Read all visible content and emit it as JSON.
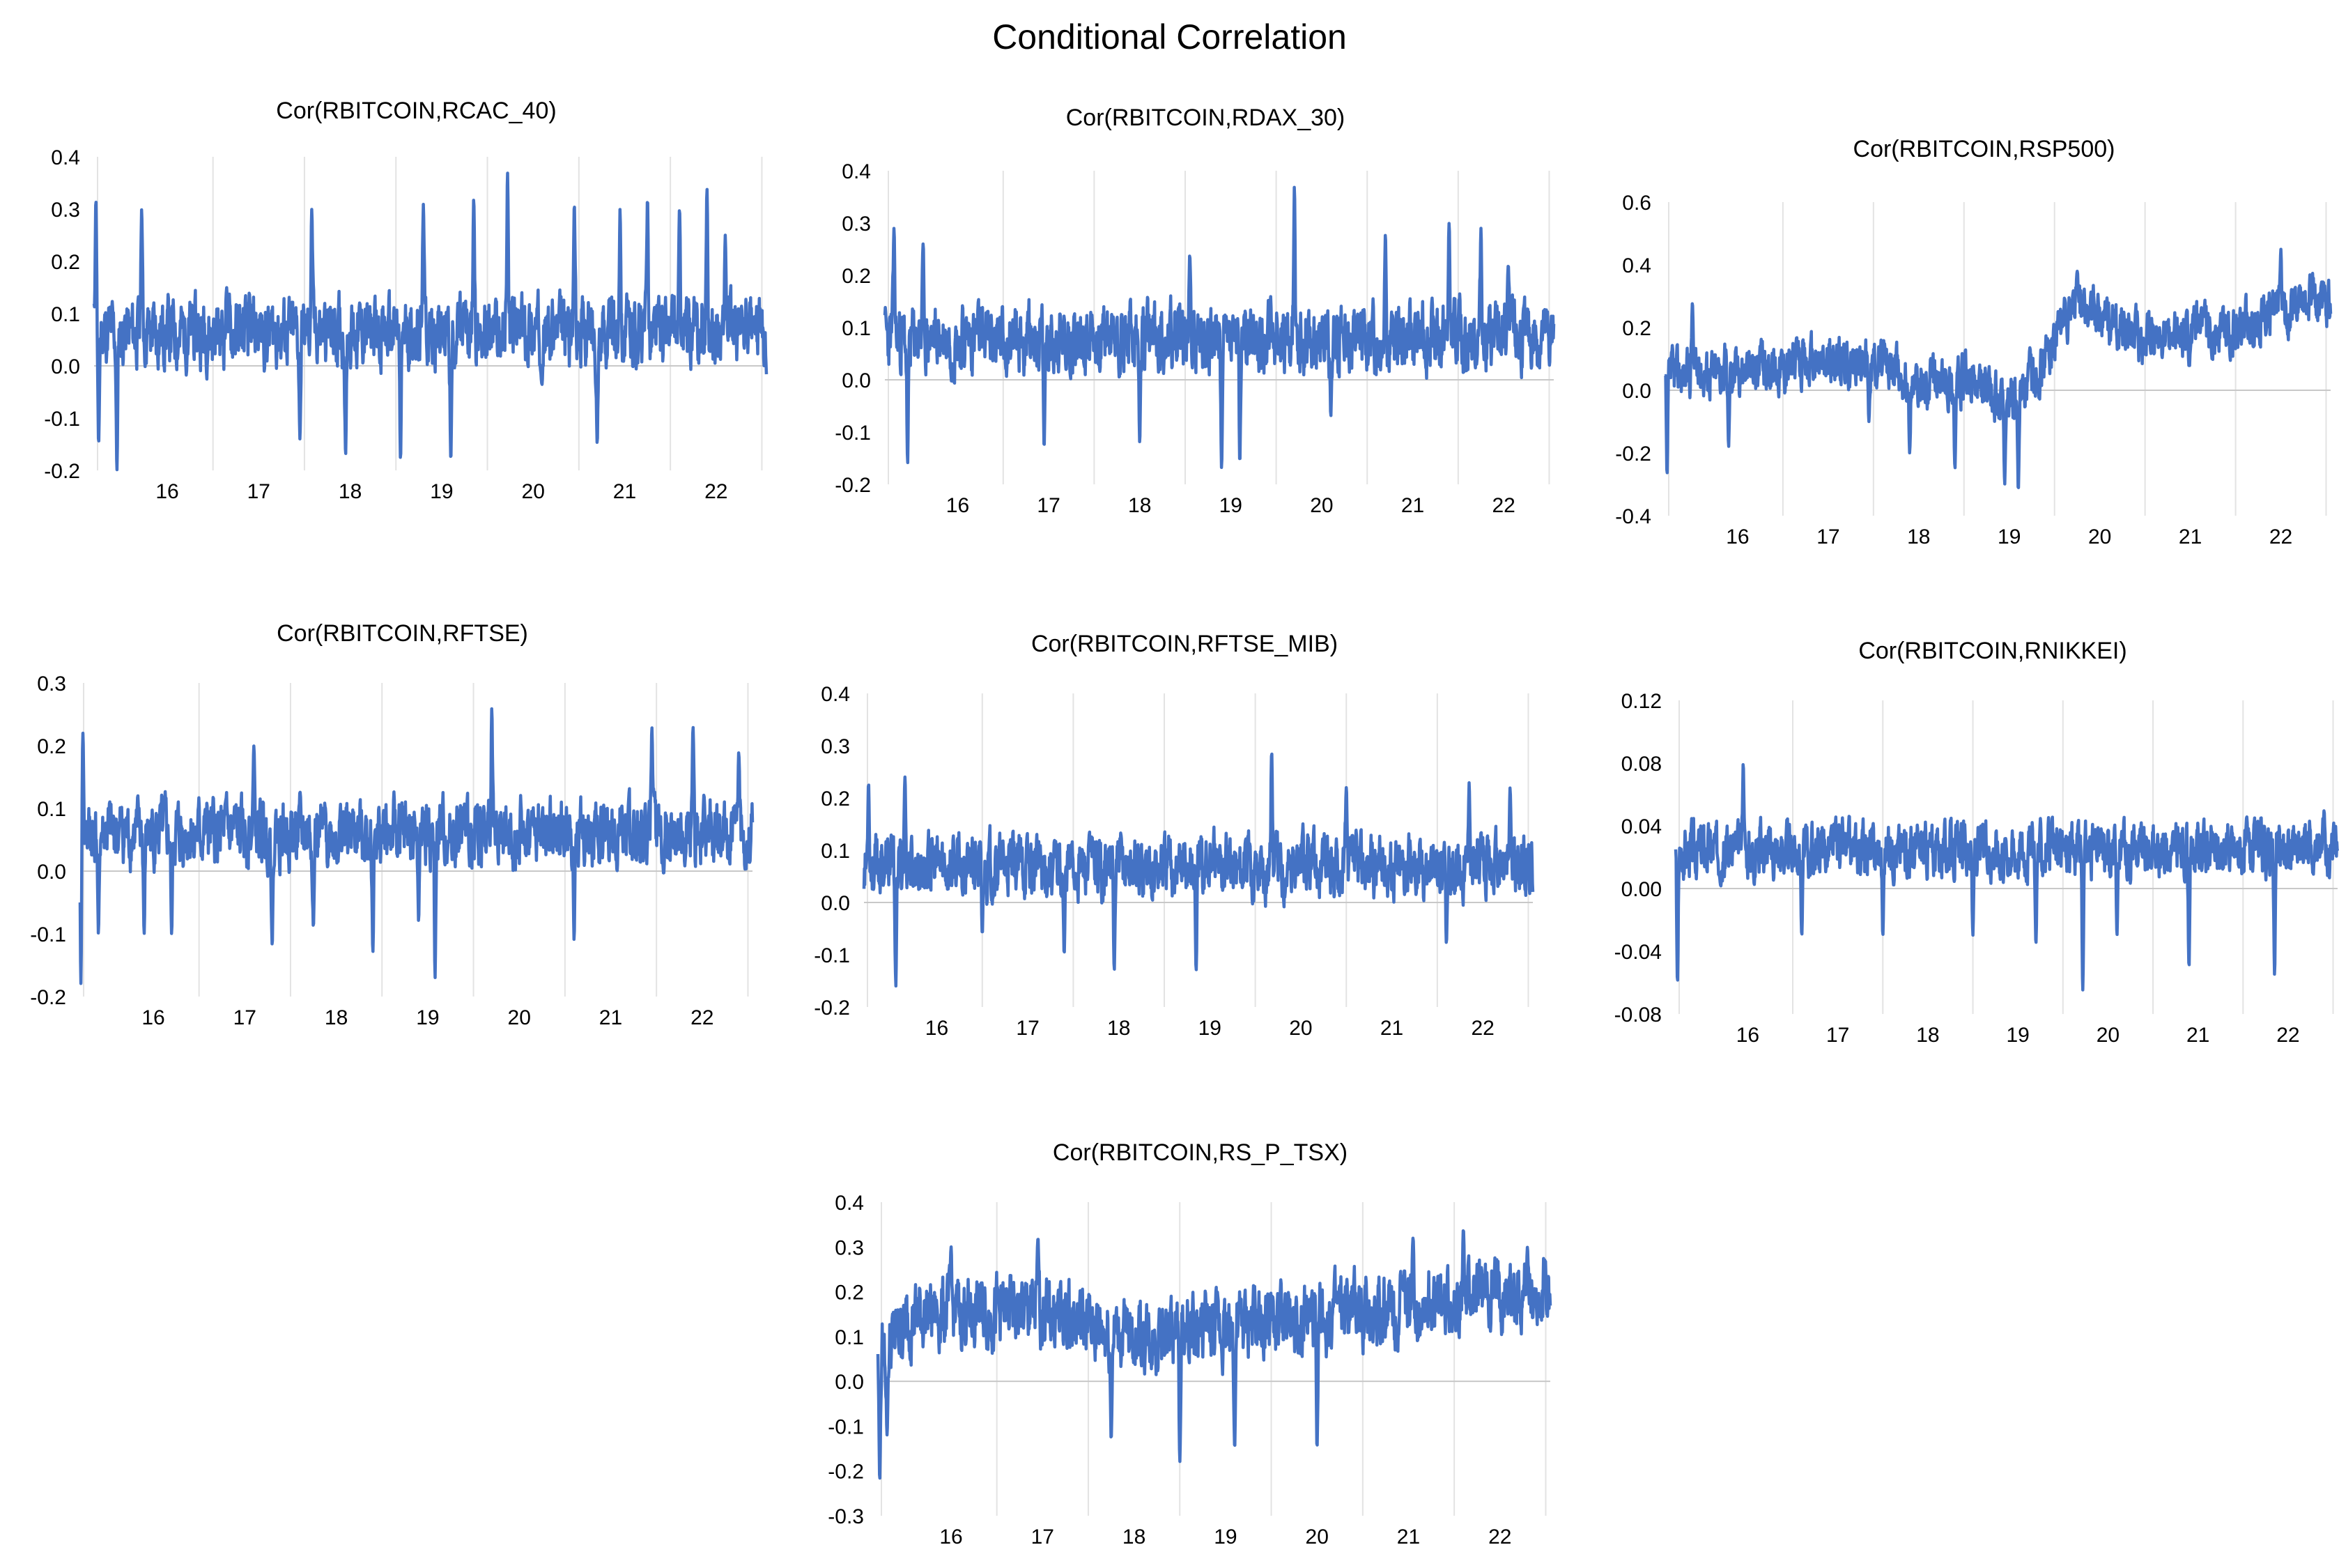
{
  "title": "Conditional Correlation",
  "series_color": "#4472C4",
  "chart_data": [
    {
      "type": "line",
      "title": "Cor(RBITCOIN,RCAC_40)",
      "ylim": [
        -0.2,
        0.4
      ],
      "yticks": [
        "-0.2",
        "-0.1",
        "0.0",
        "0.1",
        "0.2",
        "0.3",
        "0.4"
      ],
      "xticks": [
        "16",
        "17",
        "18",
        "19",
        "20",
        "21",
        "22"
      ],
      "x": {
        "start": 15.2,
        "end": 22.55
      },
      "baseline": 0.065,
      "noise": 0.05,
      "seed": 11,
      "spikes": [
        [
          15.22,
          0.32
        ],
        [
          15.25,
          -0.15
        ],
        [
          15.45,
          -0.2
        ],
        [
          15.72,
          0.3
        ],
        [
          16.65,
          0.15
        ],
        [
          17.45,
          -0.14
        ],
        [
          17.58,
          0.3
        ],
        [
          17.95,
          -0.17
        ],
        [
          18.55,
          -0.18
        ],
        [
          18.8,
          0.31
        ],
        [
          19.1,
          -0.18
        ],
        [
          19.35,
          0.32
        ],
        [
          19.72,
          0.37
        ],
        [
          20.45,
          0.31
        ],
        [
          20.7,
          -0.15
        ],
        [
          20.95,
          0.3
        ],
        [
          21.25,
          0.32
        ],
        [
          21.6,
          0.3
        ],
        [
          21.9,
          0.34
        ],
        [
          22.1,
          0.25
        ]
      ]
    },
    {
      "type": "line",
      "title": "Cor(RBITCOIN,RDAX_30)",
      "ylim": [
        -0.2,
        0.4
      ],
      "yticks": [
        "-0.2",
        "-0.1",
        "0.0",
        "0.1",
        "0.2",
        "0.3",
        "0.4"
      ],
      "xticks": [
        "16",
        "17",
        "18",
        "19",
        "20",
        "21",
        "22"
      ],
      "x": {
        "start": 15.2,
        "end": 22.55
      },
      "baseline": 0.08,
      "noise": 0.05,
      "seed": 23,
      "spikes": [
        [
          15.3,
          0.29
        ],
        [
          15.45,
          -0.16
        ],
        [
          15.62,
          0.26
        ],
        [
          16.95,
          -0.13
        ],
        [
          18.0,
          -0.12
        ],
        [
          18.55,
          0.24
        ],
        [
          18.9,
          -0.17
        ],
        [
          19.1,
          -0.16
        ],
        [
          19.7,
          0.37
        ],
        [
          20.1,
          -0.07
        ],
        [
          20.7,
          0.28
        ],
        [
          21.4,
          0.3
        ],
        [
          21.75,
          0.29
        ],
        [
          22.05,
          0.22
        ]
      ]
    },
    {
      "type": "line",
      "title": "Cor(RBITCOIN,RSP500)",
      "ylim": [
        -0.4,
        0.6
      ],
      "yticks": [
        "-0.4",
        "-0.2",
        "0.0",
        "0.2",
        "0.4",
        "0.6"
      ],
      "xticks": [
        "16",
        "17",
        "18",
        "19",
        "20",
        "21",
        "22"
      ],
      "x": {
        "start": 15.2,
        "end": 22.55
      },
      "noise": 0.06,
      "seed": 37,
      "trend": [
        [
          15.2,
          0.05
        ],
        [
          16.5,
          0.08
        ],
        [
          17.5,
          0.1
        ],
        [
          18.0,
          0.02
        ],
        [
          18.5,
          0.03
        ],
        [
          19.0,
          -0.05
        ],
        [
          19.4,
          0.1
        ],
        [
          19.7,
          0.28
        ],
        [
          20.5,
          0.15
        ],
        [
          21.5,
          0.2
        ],
        [
          22.55,
          0.3
        ]
      ],
      "spikes": [
        [
          15.22,
          -0.27
        ],
        [
          15.5,
          0.28
        ],
        [
          15.9,
          -0.18
        ],
        [
          17.45,
          -0.1
        ],
        [
          17.9,
          -0.2
        ],
        [
          18.4,
          -0.25
        ],
        [
          18.95,
          -0.3
        ],
        [
          19.1,
          -0.32
        ],
        [
          19.75,
          0.38
        ],
        [
          22.0,
          0.45
        ]
      ]
    },
    {
      "type": "line",
      "title": "Cor(RBITCOIN,RFTSE)",
      "ylim": [
        -0.2,
        0.3
      ],
      "yticks": [
        "-0.2",
        "-0.1",
        "0.0",
        "0.1",
        "0.2",
        "0.3"
      ],
      "xticks": [
        "16",
        "17",
        "18",
        "19",
        "20",
        "21",
        "22"
      ],
      "x": {
        "start": 15.2,
        "end": 22.55
      },
      "baseline": 0.06,
      "noise": 0.04,
      "seed": 41,
      "spikes": [
        [
          15.21,
          -0.2
        ],
        [
          15.23,
          0.22
        ],
        [
          15.4,
          -0.1
        ],
        [
          15.9,
          -0.1
        ],
        [
          16.2,
          -0.1
        ],
        [
          17.1,
          0.2
        ],
        [
          17.3,
          -0.12
        ],
        [
          17.75,
          -0.09
        ],
        [
          18.4,
          -0.13
        ],
        [
          18.9,
          -0.08
        ],
        [
          19.08,
          -0.17
        ],
        [
          19.7,
          0.26
        ],
        [
          20.6,
          -0.11
        ],
        [
          21.45,
          0.23
        ],
        [
          21.9,
          0.23
        ],
        [
          22.4,
          0.19
        ]
      ]
    },
    {
      "type": "line",
      "title": "Cor(RBITCOIN,RFTSE_MIB)",
      "ylim": [
        -0.2,
        0.4
      ],
      "yticks": [
        "-0.2",
        "-0.1",
        "0.0",
        "0.1",
        "0.2",
        "0.3",
        "0.4"
      ],
      "xticks": [
        "16",
        "17",
        "18",
        "19",
        "20",
        "21",
        "22"
      ],
      "x": {
        "start": 15.2,
        "end": 22.55
      },
      "baseline": 0.07,
      "noise": 0.045,
      "seed": 53,
      "spikes": [
        [
          15.25,
          0.23
        ],
        [
          15.55,
          -0.16
        ],
        [
          15.65,
          0.24
        ],
        [
          16.5,
          -0.06
        ],
        [
          17.4,
          -0.1
        ],
        [
          17.95,
          -0.13
        ],
        [
          18.85,
          -0.13
        ],
        [
          19.68,
          0.29
        ],
        [
          20.5,
          0.22
        ],
        [
          21.6,
          -0.08
        ],
        [
          21.85,
          0.23
        ],
        [
          22.3,
          0.22
        ]
      ]
    },
    {
      "type": "line",
      "title": "Cor(RBITCOIN,RNIKKEI)",
      "ylim": [
        -0.08,
        0.12
      ],
      "yticks": [
        "-0.08",
        "-0.04",
        "0.00",
        "0.04",
        "0.08",
        "0.12"
      ],
      "xticks": [
        "16",
        "17",
        "18",
        "19",
        "20",
        "21",
        "22"
      ],
      "x": {
        "start": 15.2,
        "end": 22.55
      },
      "baseline": 0.025,
      "noise": 0.013,
      "seed": 67,
      "spikes": [
        [
          15.22,
          -0.06
        ],
        [
          15.95,
          0.08
        ],
        [
          16.6,
          -0.03
        ],
        [
          17.5,
          -0.03
        ],
        [
          18.5,
          -0.03
        ],
        [
          19.2,
          -0.035
        ],
        [
          19.72,
          -0.065
        ],
        [
          20.1,
          -0.03
        ],
        [
          20.9,
          -0.05
        ],
        [
          21.85,
          -0.055
        ],
        [
          22.4,
          0.05
        ]
      ]
    },
    {
      "type": "line",
      "title": "Cor(RBITCOIN,RS_P_TSX)",
      "ylim": [
        -0.3,
        0.4
      ],
      "yticks": [
        "-0.3",
        "-0.2",
        "-0.1",
        "0.0",
        "0.1",
        "0.2",
        "0.3",
        "0.4"
      ],
      "xticks": [
        "16",
        "17",
        "18",
        "19",
        "20",
        "21",
        "22"
      ],
      "x": {
        "start": 15.2,
        "end": 22.55
      },
      "noise": 0.06,
      "seed": 79,
      "trend": [
        [
          15.2,
          0.05
        ],
        [
          15.6,
          0.15
        ],
        [
          17.0,
          0.16
        ],
        [
          18.0,
          0.1
        ],
        [
          19.0,
          0.12
        ],
        [
          20.0,
          0.14
        ],
        [
          21.0,
          0.17
        ],
        [
          22.55,
          0.2
        ]
      ],
      "spikes": [
        [
          15.22,
          -0.22
        ],
        [
          15.3,
          -0.12
        ],
        [
          16.0,
          0.3
        ],
        [
          16.95,
          0.32
        ],
        [
          17.75,
          -0.13
        ],
        [
          18.5,
          -0.18
        ],
        [
          19.1,
          -0.15
        ],
        [
          20.0,
          -0.15
        ],
        [
          21.05,
          0.32
        ],
        [
          21.6,
          0.34
        ],
        [
          22.3,
          0.3
        ]
      ]
    }
  ]
}
